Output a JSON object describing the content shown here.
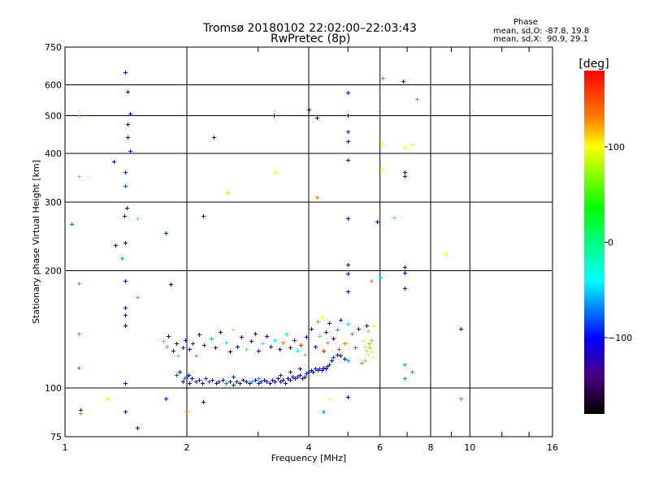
{
  "chart_data": {
    "type": "scatter",
    "title": "Tromsø 20180102 22:02:00–22:03:43",
    "subtitle": "RwPretec (8p)",
    "xlabel": "Frequency [MHz]",
    "ylabel": "Stationary phase Virtual Height [km]",
    "xscale": "log",
    "yscale": "log",
    "xlim": [
      1,
      16
    ],
    "ylim": [
      75,
      750
    ],
    "xticks": [
      1,
      2,
      4,
      6,
      8,
      10,
      16
    ],
    "yticks": [
      75,
      100,
      200,
      300,
      400,
      500,
      600,
      750
    ],
    "xgrid": [
      2,
      4,
      6,
      8,
      10
    ],
    "ygrid": [
      100,
      200,
      300,
      400,
      500,
      600
    ],
    "grid": true,
    "colorbar": {
      "label": "[deg]",
      "range": [
        -180,
        180
      ],
      "ticks": [
        100,
        0,
        -100
      ]
    },
    "phase_stats": {
      "heading": "Phase",
      "o_label": "mean, sd,O:",
      "o_values": "-87.8, 19.8",
      "x_label": "mean, sd,X:",
      "x_values": "90.9, 29.1"
    },
    "points": [
      [
        1.41,
        647,
        -105
      ],
      [
        1.43,
        577,
        -100
      ],
      [
        1.45,
        505,
        -95
      ],
      [
        1.43,
        476,
        -100
      ],
      [
        1.43,
        441,
        -105
      ],
      [
        1.45,
        406,
        -100
      ],
      [
        1.32,
        382,
        -110
      ],
      [
        1.41,
        359,
        -95
      ],
      [
        1.41,
        331,
        -80
      ],
      [
        1.42,
        290,
        -100
      ],
      [
        1.4,
        277,
        -110
      ],
      [
        1.33,
        233,
        -110
      ],
      [
        1.41,
        236,
        -150
      ],
      [
        1.38,
        215,
        -60
      ],
      [
        1.41,
        188,
        -100
      ],
      [
        1.41,
        161,
        -130
      ],
      [
        1.41,
        154,
        -150
      ],
      [
        1.41,
        145,
        -100
      ],
      [
        1.08,
        350,
        -40
      ],
      [
        1.08,
        497,
        100
      ],
      [
        1.04,
        264,
        -70
      ],
      [
        1.08,
        186,
        130
      ],
      [
        1.08,
        138,
        40
      ],
      [
        1.08,
        113,
        -60
      ],
      [
        1.09,
        88,
        -110
      ],
      [
        1.09,
        86,
        130
      ],
      [
        1.27,
        94,
        100
      ],
      [
        1.41,
        103,
        -110
      ],
      [
        1.41,
        87,
        -105
      ],
      [
        1.51,
        79,
        -100
      ],
      [
        1.51,
        171,
        40
      ],
      [
        1.51,
        273,
        -40
      ],
      [
        1.77,
        250,
        -90
      ],
      [
        1.82,
        185,
        -110
      ],
      [
        1.77,
        94,
        -95
      ],
      [
        2.33,
        441,
        -130
      ],
      [
        2.19,
        276,
        -150
      ],
      [
        2.19,
        92,
        -150
      ],
      [
        2.0,
        87,
        130
      ],
      [
        2.52,
        318,
        80
      ],
      [
        3.28,
        502,
        -110
      ],
      [
        3.29,
        359,
        100
      ],
      [
        4.0,
        519,
        -110
      ],
      [
        4.19,
        495,
        -100
      ],
      [
        4.19,
        309,
        130
      ],
      [
        4.99,
        574,
        -100
      ],
      [
        5.0,
        502,
        -100
      ],
      [
        5.0,
        456,
        -95
      ],
      [
        5.0,
        430,
        -110
      ],
      [
        5.0,
        385,
        -130
      ],
      [
        5.0,
        273,
        -100
      ],
      [
        5.0,
        207,
        -120
      ],
      [
        5.0,
        197,
        -100
      ],
      [
        5.0,
        177,
        -110
      ],
      [
        5.0,
        95,
        -105
      ],
      [
        4.35,
        87,
        -60
      ],
      [
        4.5,
        94,
        100
      ],
      [
        5.9,
        267,
        -100
      ],
      [
        6.0,
        192,
        -40
      ],
      [
        5.7,
        188,
        130
      ],
      [
        6.1,
        626,
        140
      ],
      [
        6.06,
        424,
        100
      ],
      [
        6.06,
        364,
        100
      ],
      [
        6.5,
        274,
        -40
      ],
      [
        6.85,
        614,
        -110
      ],
      [
        6.9,
        414,
        100
      ],
      [
        6.9,
        359,
        -140
      ],
      [
        6.9,
        350,
        -140
      ],
      [
        6.9,
        204,
        -140
      ],
      [
        6.9,
        198,
        -100
      ],
      [
        6.9,
        180,
        -110
      ],
      [
        7.2,
        421,
        100
      ],
      [
        7.4,
        552,
        130
      ],
      [
        8.7,
        221,
        100
      ],
      [
        9.5,
        142,
        -150
      ],
      [
        9.5,
        94,
        130
      ],
      [
        6.9,
        115,
        -60
      ],
      [
        7.2,
        110,
        -60
      ],
      [
        6.9,
        106,
        -60
      ],
      [
        1.95,
        104,
        -100
      ],
      [
        2.0,
        107,
        -90
      ],
      [
        2.03,
        103,
        -110
      ],
      [
        2.06,
        106,
        -100
      ],
      [
        2.1,
        104,
        -95
      ],
      [
        2.14,
        105,
        -105
      ],
      [
        2.18,
        103,
        -100
      ],
      [
        2.22,
        106,
        -90
      ],
      [
        2.27,
        104,
        -80
      ],
      [
        2.31,
        105,
        -100
      ],
      [
        2.36,
        103,
        -110
      ],
      [
        2.4,
        104,
        -95
      ],
      [
        2.45,
        105,
        -100
      ],
      [
        2.5,
        103,
        -70
      ],
      [
        2.55,
        104,
        -100
      ],
      [
        2.6,
        102,
        -90
      ],
      [
        2.65,
        104,
        -110
      ],
      [
        2.7,
        103,
        -100
      ],
      [
        2.75,
        105,
        -95
      ],
      [
        2.8,
        104,
        -105
      ],
      [
        2.85,
        103,
        -100
      ],
      [
        2.9,
        104,
        -60
      ],
      [
        2.95,
        105,
        -100
      ],
      [
        3.0,
        103,
        -110
      ],
      [
        3.05,
        104,
        -95
      ],
      [
        3.1,
        105,
        -100
      ],
      [
        3.15,
        104,
        -130
      ],
      [
        3.2,
        103,
        -100
      ],
      [
        3.25,
        105,
        -115
      ],
      [
        3.3,
        104,
        -100
      ],
      [
        3.35,
        106,
        -120
      ],
      [
        3.4,
        104,
        -95
      ],
      [
        3.45,
        105,
        -110
      ],
      [
        3.5,
        103,
        -100
      ],
      [
        3.55,
        106,
        -105
      ],
      [
        3.6,
        105,
        -115
      ],
      [
        3.65,
        107,
        -100
      ],
      [
        3.7,
        106,
        -110
      ],
      [
        3.75,
        107,
        -105
      ],
      [
        3.8,
        108,
        -100
      ],
      [
        3.85,
        106,
        -115
      ],
      [
        3.9,
        107,
        -100
      ],
      [
        3.95,
        109,
        -105
      ],
      [
        4.0,
        110,
        -90
      ],
      [
        4.05,
        111,
        -100
      ],
      [
        4.1,
        110,
        -105
      ],
      [
        4.15,
        112,
        -95
      ],
      [
        4.2,
        111,
        -100
      ],
      [
        4.25,
        112,
        -110
      ],
      [
        4.3,
        111,
        -100
      ],
      [
        4.35,
        113,
        -95
      ],
      [
        4.4,
        112,
        -105
      ],
      [
        4.45,
        114,
        -100
      ],
      [
        4.5,
        115,
        -90
      ],
      [
        4.55,
        118,
        -100
      ],
      [
        4.6,
        120,
        -80
      ],
      [
        4.7,
        122,
        -100
      ],
      [
        4.8,
        121,
        -110
      ],
      [
        4.9,
        119,
        -100
      ],
      [
        5.0,
        118,
        -60
      ],
      [
        1.88,
        108,
        -80
      ],
      [
        1.92,
        110,
        -100
      ],
      [
        1.97,
        106,
        -70
      ],
      [
        2.02,
        108,
        -110
      ],
      [
        2.6,
        107,
        -100
      ],
      [
        3.0,
        106,
        -60
      ],
      [
        3.4,
        108,
        -140
      ],
      [
        3.6,
        110,
        -100
      ],
      [
        3.8,
        112,
        -110
      ],
      [
        1.75,
        132,
        -40
      ],
      [
        1.78,
        128,
        130
      ],
      [
        1.8,
        136,
        -100
      ],
      [
        1.85,
        125,
        -110
      ],
      [
        1.88,
        130,
        -100
      ],
      [
        1.9,
        121,
        -40
      ],
      [
        1.95,
        127,
        -110
      ],
      [
        1.98,
        133,
        -100
      ],
      [
        2.03,
        126,
        -100
      ],
      [
        2.07,
        130,
        -90
      ],
      [
        2.1,
        121,
        40
      ],
      [
        2.14,
        137,
        -110
      ],
      [
        2.2,
        129,
        -100
      ],
      [
        2.3,
        134,
        -60
      ],
      [
        2.35,
        127,
        -100
      ],
      [
        2.42,
        139,
        -110
      ],
      [
        2.5,
        131,
        -40
      ],
      [
        2.55,
        124,
        -100
      ],
      [
        2.6,
        141,
        80
      ],
      [
        2.66,
        128,
        -100
      ],
      [
        2.72,
        135,
        -110
      ],
      [
        2.8,
        126,
        -40
      ],
      [
        2.88,
        132,
        -100
      ],
      [
        2.95,
        138,
        -130
      ],
      [
        3.0,
        125,
        -100
      ],
      [
        3.08,
        130,
        -40
      ],
      [
        3.15,
        136,
        -110
      ],
      [
        3.22,
        128,
        -100
      ],
      [
        3.3,
        133,
        -40
      ],
      [
        3.38,
        126,
        -100
      ],
      [
        3.45,
        131,
        130
      ],
      [
        3.52,
        137,
        -40
      ],
      [
        3.6,
        127,
        -100
      ],
      [
        3.68,
        133,
        -110
      ],
      [
        3.75,
        125,
        -40
      ],
      [
        3.82,
        129,
        160
      ],
      [
        3.9,
        122,
        60
      ],
      [
        3.95,
        135,
        -100
      ],
      [
        4.05,
        142,
        -110
      ],
      [
        4.15,
        128,
        -100
      ],
      [
        4.2,
        148,
        130
      ],
      [
        4.25,
        136,
        -40
      ],
      [
        4.3,
        152,
        100
      ],
      [
        4.35,
        125,
        170
      ],
      [
        4.4,
        139,
        -105
      ],
      [
        4.45,
        131,
        130
      ],
      [
        4.5,
        147,
        -100
      ],
      [
        4.6,
        134,
        -110
      ],
      [
        4.7,
        141,
        -60
      ],
      [
        4.75,
        126,
        160
      ],
      [
        4.8,
        150,
        -100
      ],
      [
        4.9,
        130,
        130
      ],
      [
        5.0,
        146,
        -40
      ],
      [
        5.1,
        138,
        140
      ],
      [
        5.2,
        127,
        150
      ],
      [
        5.3,
        142,
        -120
      ],
      [
        5.45,
        132,
        100
      ],
      [
        5.5,
        128,
        90
      ],
      [
        5.55,
        125,
        80
      ],
      [
        5.6,
        122,
        100
      ],
      [
        5.62,
        130,
        120
      ],
      [
        5.65,
        127,
        70
      ],
      [
        5.7,
        124,
        100
      ],
      [
        5.72,
        133,
        60
      ],
      [
        5.75,
        120,
        100
      ],
      [
        5.5,
        118,
        120
      ],
      [
        5.4,
        116,
        130
      ],
      [
        5.6,
        140,
        70
      ],
      [
        5.55,
        145,
        -100
      ],
      [
        5.8,
        145,
        100
      ]
    ]
  }
}
